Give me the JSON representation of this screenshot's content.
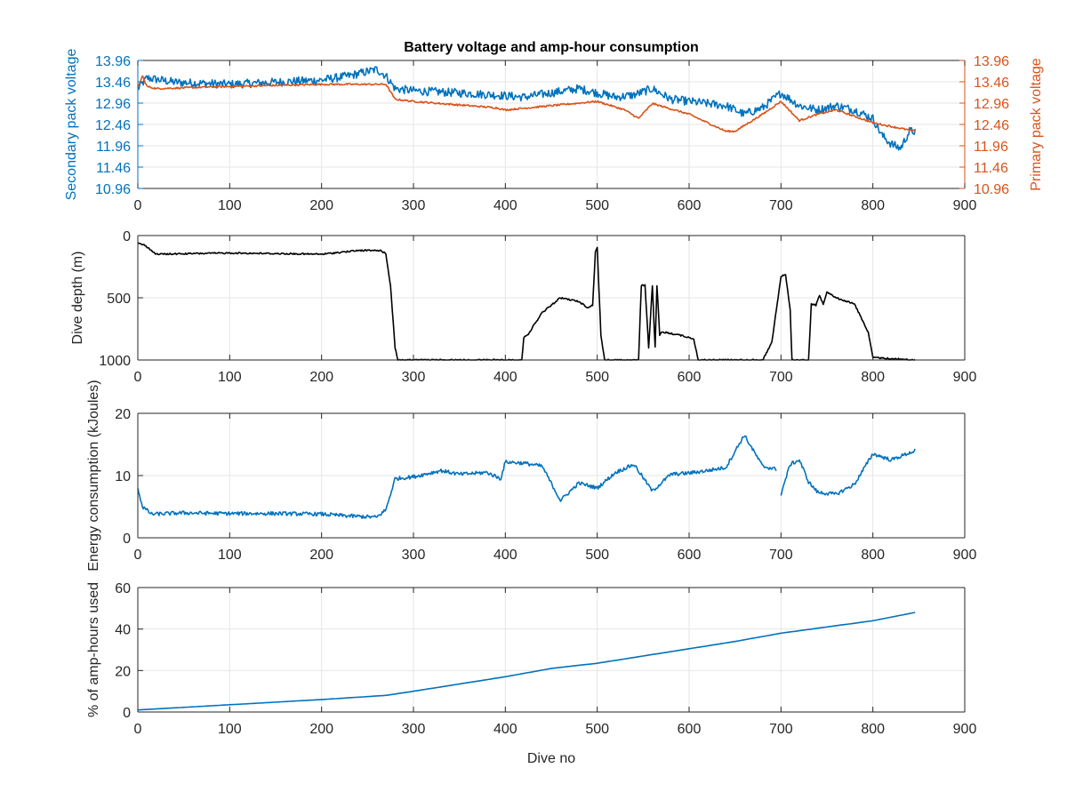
{
  "figure": {
    "title": "Battery voltage and amp-hour consumption"
  },
  "chart_data": [
    {
      "type": "line",
      "title": "Battery voltage and amp-hour consumption",
      "xlabel": "",
      "ylabel": "Secondary pack voltage",
      "ylabel_right": "Primary pack voltage",
      "xlim": [
        0,
        900
      ],
      "ylim": [
        10.96,
        13.96
      ],
      "xticks": [
        "0",
        "100",
        "200",
        "300",
        "400",
        "500",
        "600",
        "700",
        "800",
        "900"
      ],
      "yticks": [
        "10.96",
        "11.46",
        "11.96",
        "12.46",
        "12.96",
        "13.46",
        "13.96"
      ],
      "yticks_right": [
        "10.96",
        "11.46",
        "11.96",
        "12.46",
        "12.96",
        "13.46",
        "13.96"
      ],
      "grid": true,
      "colors": {
        "left_axis": "#0072BD",
        "right_axis": "#D95319"
      },
      "series": [
        {
          "axis": "left",
          "color": "#0072BD",
          "noise": 0.1,
          "x": [
            0,
            10,
            40,
            100,
            150,
            200,
            230,
            260,
            270,
            280,
            300,
            350,
            390,
            420,
            450,
            480,
            500,
            520,
            540,
            560,
            580,
            600,
            620,
            640,
            660,
            680,
            700,
            720,
            740,
            760,
            780,
            800,
            810,
            820,
            830,
            840,
            846
          ],
          "y": [
            13.3,
            13.55,
            13.45,
            13.4,
            13.45,
            13.5,
            13.6,
            13.75,
            13.6,
            13.3,
            13.25,
            13.2,
            13.15,
            13.1,
            13.2,
            13.3,
            13.2,
            13.1,
            13.15,
            13.3,
            13.05,
            13.0,
            12.95,
            12.9,
            12.7,
            12.85,
            13.2,
            12.9,
            12.8,
            12.9,
            12.8,
            12.6,
            12.2,
            12.0,
            11.9,
            12.3,
            12.3
          ]
        },
        {
          "axis": "right",
          "color": "#D95319",
          "noise": 0.02,
          "x": [
            0,
            5,
            10,
            20,
            100,
            200,
            270,
            280,
            300,
            390,
            400,
            450,
            500,
            530,
            545,
            560,
            600,
            640,
            650,
            680,
            700,
            720,
            740,
            760,
            800,
            846
          ],
          "y": [
            13.3,
            13.6,
            13.35,
            13.3,
            13.35,
            13.4,
            13.4,
            13.05,
            13.0,
            12.85,
            12.8,
            12.9,
            13.0,
            12.8,
            12.6,
            12.95,
            12.7,
            12.3,
            12.3,
            12.7,
            13.0,
            12.55,
            12.7,
            12.8,
            12.5,
            12.3
          ]
        }
      ]
    },
    {
      "type": "line",
      "xlabel": "",
      "ylabel": "Dive depth (m)",
      "xlim": [
        0,
        900
      ],
      "ylim": [
        0,
        1000
      ],
      "y_reversed": true,
      "xticks": [
        "0",
        "100",
        "200",
        "300",
        "400",
        "500",
        "600",
        "700",
        "800",
        "900"
      ],
      "yticks": [
        "0",
        "500",
        "1000"
      ],
      "grid": true,
      "series": [
        {
          "color": "#000000",
          "noise": 6,
          "x": [
            0,
            8,
            20,
            100,
            200,
            240,
            265,
            270,
            275,
            280,
            283,
            300,
            400,
            418,
            420,
            425,
            440,
            460,
            480,
            490,
            495,
            498,
            500,
            504,
            508,
            512,
            545,
            548,
            552,
            556,
            560,
            563,
            565,
            568,
            570,
            575,
            590,
            605,
            610,
            680,
            690,
            700,
            705,
            710,
            712,
            730,
            733,
            738,
            742,
            746,
            750,
            760,
            780,
            790,
            795,
            800,
            846
          ],
          "y": [
            60,
            80,
            150,
            140,
            150,
            120,
            120,
            150,
            400,
            900,
            1000,
            1000,
            1000,
            1000,
            820,
            790,
            620,
            500,
            530,
            580,
            560,
            130,
            100,
            800,
            1000,
            1000,
            1000,
            400,
            400,
            900,
            400,
            900,
            400,
            800,
            780,
            780,
            800,
            830,
            1000,
            1000,
            860,
            330,
            310,
            600,
            1000,
            1000,
            550,
            560,
            480,
            550,
            450,
            500,
            550,
            700,
            780,
            980,
            1000
          ]
        }
      ]
    },
    {
      "type": "line",
      "xlabel": "",
      "ylabel": "Energy consumption (kJoules)",
      "xlim": [
        0,
        900
      ],
      "ylim": [
        0,
        20
      ],
      "xticks": [
        "0",
        "100",
        "200",
        "300",
        "400",
        "500",
        "600",
        "700",
        "800",
        "900"
      ],
      "yticks": [
        "0",
        "10",
        "20"
      ],
      "grid": true,
      "series": [
        {
          "color": "#0072BD",
          "noise": 0.3,
          "x": [
            0,
            5,
            15,
            50,
            100,
            150,
            200,
            230,
            260,
            270,
            280,
            300,
            330,
            350,
            380,
            395,
            400,
            420,
            440,
            460,
            480,
            500,
            520,
            540,
            560,
            580,
            600,
            620,
            640,
            660,
            680,
            695
          ],
          "y": [
            8,
            5,
            3.8,
            4,
            3.9,
            3.9,
            3.8,
            3.5,
            3.3,
            4.5,
            9.5,
            9.8,
            10.8,
            10.2,
            10.5,
            9.5,
            12.2,
            12.0,
            11.5,
            6.0,
            8.8,
            8.0,
            10.5,
            11.8,
            7.5,
            10.2,
            10.4,
            10.8,
            11.3,
            16.5,
            11.5,
            11.0
          ]
        },
        {
          "color": "#0072BD",
          "noise": 0.3,
          "x": [
            700,
            710,
            720,
            730,
            740,
            760,
            780,
            800,
            820,
            846
          ],
          "y": [
            7.0,
            11.8,
            12.5,
            9.0,
            7.3,
            7.0,
            8.6,
            13.5,
            12.5,
            14.0
          ]
        }
      ]
    },
    {
      "type": "line",
      "xlabel": "Dive no",
      "ylabel": "% of amp-hours used",
      "xlim": [
        0,
        900
      ],
      "ylim": [
        0,
        60
      ],
      "xticks": [
        "0",
        "100",
        "200",
        "300",
        "400",
        "500",
        "600",
        "700",
        "800",
        "900"
      ],
      "yticks": [
        "0",
        "20",
        "40",
        "60"
      ],
      "grid": true,
      "series": [
        {
          "color": "#0072BD",
          "noise": 0,
          "x": [
            0,
            100,
            200,
            270,
            300,
            350,
            400,
            450,
            500,
            550,
            600,
            650,
            700,
            750,
            800,
            846
          ],
          "y": [
            1,
            3.5,
            6,
            8,
            10,
            13.5,
            17,
            21,
            23.5,
            27,
            30.5,
            34,
            38,
            41,
            44,
            48
          ]
        }
      ]
    }
  ]
}
